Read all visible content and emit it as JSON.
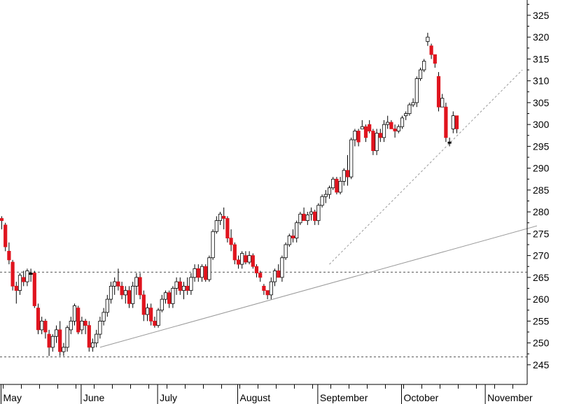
{
  "chart_data": {
    "type": "candlestick",
    "title": "",
    "xlabel": "",
    "ylabel": "",
    "ylim": [
      240.5,
      328.5
    ],
    "y_ticks": [
      245,
      250,
      255,
      260,
      265,
      270,
      275,
      280,
      285,
      290,
      295,
      300,
      305,
      310,
      315,
      320,
      325
    ],
    "months": [
      "May",
      "June",
      "July",
      "August",
      "September",
      "October",
      "November"
    ],
    "month_start_index": [
      0,
      22,
      43,
      65,
      87,
      110,
      133
    ],
    "grid": false,
    "colors": {
      "up": "#ffffff",
      "down": "#e0141e",
      "doji": "#000000",
      "outline": "#000000",
      "trendline": "#999999",
      "level": "#555555"
    },
    "horizontal_levels": [
      266.2,
      246.8
    ],
    "trendlines": [
      {
        "style": "solid",
        "from": {
          "i": 27,
          "price": 249
        },
        "to": {
          "i": 147,
          "price": 276.8
        }
      },
      {
        "style": "dashed",
        "from": {
          "i": 90,
          "price": 268
        },
        "to": {
          "i": 143,
          "price": 312.5
        }
      }
    ],
    "candles": [
      [
        278.5,
        279,
        276,
        278
      ],
      [
        277,
        277.5,
        271,
        272
      ],
      [
        271,
        273,
        268,
        269
      ],
      [
        268.5,
        269,
        262,
        263
      ],
      [
        263,
        264,
        259,
        262
      ],
      [
        262,
        266,
        261,
        265.5
      ],
      [
        265,
        266.5,
        263,
        264
      ],
      [
        264,
        267,
        263,
        266.5
      ],
      [
        266,
        267,
        264,
        266
      ],
      [
        266,
        266.5,
        258,
        258.5
      ],
      [
        258,
        259,
        252,
        253
      ],
      [
        253,
        256,
        252,
        255
      ],
      [
        255,
        255.5,
        251,
        252.5
      ],
      [
        252,
        253,
        247,
        249
      ],
      [
        249,
        252,
        248,
        251.5
      ],
      [
        251.5,
        254,
        250,
        253
      ],
      [
        253,
        255,
        247,
        248
      ],
      [
        248,
        250,
        247,
        249
      ],
      [
        249,
        254,
        248,
        253.5
      ],
      [
        253,
        256,
        252,
        255
      ],
      [
        255,
        259,
        254,
        258.5
      ],
      [
        258,
        258.5,
        252,
        252.5
      ],
      [
        253,
        256,
        252,
        255
      ],
      [
        255,
        255.5,
        252,
        254
      ],
      [
        254,
        255,
        248,
        249
      ],
      [
        249,
        251,
        248,
        250
      ],
      [
        250,
        253,
        249,
        252
      ],
      [
        252,
        256,
        251,
        255
      ],
      [
        255,
        258,
        254,
        257
      ],
      [
        257,
        261,
        256,
        260
      ],
      [
        260,
        264,
        259,
        263
      ],
      [
        263,
        265,
        261,
        264
      ],
      [
        264,
        267,
        262,
        263
      ],
      [
        263,
        264,
        260,
        261
      ],
      [
        261,
        263,
        259,
        262
      ],
      [
        262,
        263,
        258,
        259
      ],
      [
        259,
        264,
        258,
        263
      ],
      [
        263,
        266,
        261,
        265
      ],
      [
        265,
        266,
        260,
        261
      ],
      [
        261,
        262,
        255,
        256.5
      ],
      [
        256.5,
        259,
        255,
        258
      ],
      [
        258,
        259,
        254,
        255
      ],
      [
        255,
        256,
        253.5,
        254
      ],
      [
        254,
        258,
        253.5,
        257.5
      ],
      [
        257.5,
        261,
        257,
        260
      ],
      [
        260,
        262,
        259,
        261.5
      ],
      [
        261.5,
        262,
        258,
        259
      ],
      [
        259,
        263,
        258,
        262.5
      ],
      [
        262.5,
        265,
        261,
        264
      ],
      [
        264,
        265,
        261,
        262
      ],
      [
        262,
        264,
        260,
        263
      ],
      [
        263,
        265,
        261,
        262
      ],
      [
        262,
        266,
        261,
        265
      ],
      [
        265,
        268,
        264,
        267
      ],
      [
        267,
        268,
        264,
        265
      ],
      [
        265,
        268,
        264,
        267.5
      ],
      [
        267.5,
        268,
        264,
        264.5
      ],
      [
        264.5,
        270,
        264,
        269.5
      ],
      [
        269.5,
        276,
        269,
        275.5
      ],
      [
        275.5,
        279,
        275,
        278
      ],
      [
        278,
        280,
        277,
        279.5
      ],
      [
        279,
        281,
        276,
        278.5
      ],
      [
        278.5,
        279,
        273,
        274
      ],
      [
        274,
        276,
        271,
        272.5
      ],
      [
        272.5,
        273,
        268,
        269
      ],
      [
        269,
        270,
        267,
        268
      ],
      [
        268,
        271,
        267,
        270.5
      ],
      [
        270,
        271,
        268,
        268.5
      ],
      [
        268.5,
        271,
        268,
        270
      ],
      [
        270,
        270.5,
        267,
        267.5
      ],
      [
        267.5,
        268,
        265,
        266
      ],
      [
        266,
        266.5,
        264,
        265
      ],
      [
        263,
        263.5,
        261,
        262
      ],
      [
        262,
        262,
        260,
        261
      ],
      [
        261,
        265,
        260,
        264
      ],
      [
        264,
        267,
        263,
        266.5
      ],
      [
        266.5,
        268,
        265,
        265
      ],
      [
        265,
        270,
        264,
        269.5
      ],
      [
        269.5,
        273,
        269,
        272.5
      ],
      [
        272.5,
        275,
        272,
        274.5
      ],
      [
        274.5,
        276,
        273,
        274
      ],
      [
        274,
        278,
        273,
        277.5
      ],
      [
        277.5,
        280,
        277,
        279.5
      ],
      [
        279.5,
        281,
        278,
        278
      ],
      [
        278,
        280,
        277,
        279.3
      ],
      [
        279.5,
        281,
        278,
        280
      ],
      [
        280,
        280.5,
        277,
        278
      ],
      [
        278,
        282,
        277,
        281.5
      ],
      [
        281.5,
        284,
        281,
        283.5
      ],
      [
        283.5,
        285,
        282,
        284
      ],
      [
        284,
        286,
        283,
        285.5
      ],
      [
        285.5,
        288,
        285,
        287.5
      ],
      [
        287.5,
        288,
        284,
        284.5
      ],
      [
        284.5,
        288,
        284,
        287
      ],
      [
        287,
        290,
        286,
        289.5
      ],
      [
        289.5,
        293,
        286,
        288
      ],
      [
        288,
        297,
        287.5,
        296.5
      ],
      [
        296.5,
        299,
        295,
        298.5
      ],
      [
        298.5,
        299,
        295,
        296
      ],
      [
        299,
        301,
        299,
        299.5
      ],
      [
        299.5,
        300,
        296,
        297
      ],
      [
        300,
        301,
        298,
        298.5
      ],
      [
        298.5,
        299,
        293,
        294
      ],
      [
        294,
        299,
        293,
        298
      ],
      [
        298,
        299,
        296,
        297
      ],
      [
        297,
        301,
        296,
        300
      ],
      [
        300,
        302,
        299,
        300.5
      ],
      [
        300.5,
        301,
        299,
        299
      ],
      [
        299,
        300,
        297,
        298.5
      ],
      [
        298.5,
        300,
        298,
        299.5
      ],
      [
        299.5,
        302,
        299,
        301.5
      ],
      [
        302,
        303,
        301,
        302.5
      ],
      [
        302.5,
        305,
        302,
        304.5
      ],
      [
        304.5,
        306,
        304,
        305
      ],
      [
        305,
        311,
        304,
        310.5
      ],
      [
        310.5,
        313,
        310,
        312.5
      ],
      [
        312.5,
        315,
        312,
        314.5
      ],
      [
        319,
        321,
        318,
        320
      ],
      [
        318,
        318.5,
        315,
        316
      ],
      [
        316,
        316,
        313,
        314
      ],
      [
        311,
        312,
        303,
        304
      ],
      [
        304,
        307,
        304,
        306
      ],
      [
        304,
        305,
        296,
        297
      ],
      [
        296,
        297,
        295,
        296
      ],
      [
        299,
        303,
        298,
        302
      ],
      [
        302,
        302,
        298,
        299
      ]
    ]
  }
}
